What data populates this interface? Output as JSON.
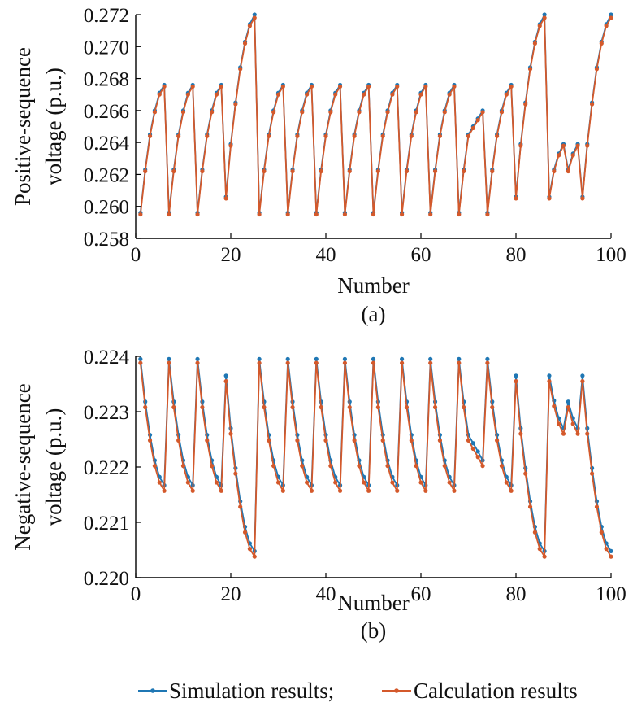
{
  "chart_data": [
    {
      "type": "line",
      "caption": "(a)",
      "xlabel": "Number",
      "ylabel": "Positive-sequence voltage (p.u.)",
      "xlim": [
        0,
        100
      ],
      "ylim": [
        0.258,
        0.272
      ],
      "xticks": [
        "0",
        "20",
        "40",
        "60",
        "80",
        "100"
      ],
      "yticks": [
        "0.258",
        "0.260",
        "0.262",
        "0.264",
        "0.266",
        "0.268",
        "0.270",
        "0.272"
      ],
      "grid": false,
      "x": [
        1,
        2,
        3,
        4,
        5,
        6,
        7,
        8,
        9,
        10,
        11,
        12,
        13,
        14,
        15,
        16,
        17,
        18,
        19,
        20,
        21,
        22,
        23,
        24,
        25,
        26,
        27,
        28,
        29,
        30,
        31,
        32,
        33,
        34,
        35,
        36,
        37,
        38,
        39,
        40,
        41,
        42,
        43,
        44,
        45,
        46,
        47,
        48,
        49,
        50,
        51,
        52,
        53,
        54,
        55,
        56,
        57,
        58,
        59,
        60,
        61,
        62,
        63,
        64,
        65,
        66,
        67,
        68,
        69,
        70,
        71,
        72,
        73,
        74,
        75,
        76,
        77,
        78,
        79,
        80,
        81,
        82,
        83,
        84,
        85,
        86,
        87,
        88,
        89,
        90,
        91,
        92,
        93,
        94,
        95,
        96,
        97,
        98,
        99,
        100
      ],
      "series": [
        {
          "name": "Simulation results",
          "color": "#1f77b4",
          "values": [
            0.2596,
            0.2623,
            0.2645,
            0.266,
            0.2671,
            0.2676,
            0.2596,
            0.2623,
            0.2645,
            0.266,
            0.2671,
            0.2676,
            0.2596,
            0.2623,
            0.2645,
            0.266,
            0.2671,
            0.2676,
            0.2606,
            0.2639,
            0.2665,
            0.2687,
            0.2703,
            0.2714,
            0.272,
            0.2596,
            0.2623,
            0.2645,
            0.266,
            0.2671,
            0.2676,
            0.2596,
            0.2623,
            0.2645,
            0.266,
            0.2671,
            0.2676,
            0.2596,
            0.2623,
            0.2645,
            0.266,
            0.2671,
            0.2676,
            0.2596,
            0.2623,
            0.2645,
            0.266,
            0.2671,
            0.2676,
            0.2596,
            0.2623,
            0.2645,
            0.266,
            0.2671,
            0.2676,
            0.2596,
            0.2623,
            0.2645,
            0.266,
            0.2671,
            0.2676,
            0.2596,
            0.2623,
            0.2645,
            0.266,
            0.2671,
            0.2676,
            0.2596,
            0.2623,
            0.2645,
            0.265,
            0.2655,
            0.266,
            0.2596,
            0.2623,
            0.2645,
            0.266,
            0.2671,
            0.2676,
            0.2606,
            0.2639,
            0.2665,
            0.2687,
            0.2703,
            0.2714,
            0.272,
            0.2606,
            0.2623,
            0.2633,
            0.2639,
            0.2623,
            0.2633,
            0.2639,
            0.2606,
            0.2639,
            0.2665,
            0.2687,
            0.2703,
            0.2714,
            0.272
          ]
        },
        {
          "name": "Calculation results",
          "color": "#d4592b",
          "values": [
            0.2595,
            0.2622,
            0.2644,
            0.2659,
            0.267,
            0.2675,
            0.2595,
            0.2622,
            0.2644,
            0.2659,
            0.267,
            0.2675,
            0.2595,
            0.2622,
            0.2644,
            0.2659,
            0.267,
            0.2675,
            0.2605,
            0.2638,
            0.2664,
            0.2686,
            0.2702,
            0.2713,
            0.2718,
            0.2595,
            0.2622,
            0.2644,
            0.2659,
            0.267,
            0.2675,
            0.2595,
            0.2622,
            0.2644,
            0.2659,
            0.267,
            0.2675,
            0.2595,
            0.2622,
            0.2644,
            0.2659,
            0.267,
            0.2675,
            0.2595,
            0.2622,
            0.2644,
            0.2659,
            0.267,
            0.2675,
            0.2595,
            0.2622,
            0.2644,
            0.2659,
            0.267,
            0.2675,
            0.2595,
            0.2622,
            0.2644,
            0.2659,
            0.267,
            0.2675,
            0.2595,
            0.2622,
            0.2644,
            0.2659,
            0.267,
            0.2675,
            0.2595,
            0.2622,
            0.2644,
            0.2649,
            0.2654,
            0.2659,
            0.2595,
            0.2622,
            0.2644,
            0.2659,
            0.267,
            0.2675,
            0.2605,
            0.2638,
            0.2664,
            0.2686,
            0.2702,
            0.2713,
            0.2718,
            0.2605,
            0.2622,
            0.2632,
            0.2638,
            0.2622,
            0.2632,
            0.2638,
            0.2605,
            0.2638,
            0.2664,
            0.2686,
            0.2702,
            0.2713,
            0.2718
          ]
        }
      ]
    },
    {
      "type": "line",
      "caption": "(b)",
      "xlabel": "Number",
      "ylabel": "Negative-sequence voltage (p.u.)",
      "xlim": [
        0,
        100
      ],
      "ylim": [
        0.22,
        0.224
      ],
      "xticks": [
        "0",
        "20",
        "40",
        "60",
        "80",
        "100"
      ],
      "yticks": [
        "0.220",
        "0.221",
        "0.222",
        "0.223",
        "0.224"
      ],
      "grid": false,
      "x": [
        1,
        2,
        3,
        4,
        5,
        6,
        7,
        8,
        9,
        10,
        11,
        12,
        13,
        14,
        15,
        16,
        17,
        18,
        19,
        20,
        21,
        22,
        23,
        24,
        25,
        26,
        27,
        28,
        29,
        30,
        31,
        32,
        33,
        34,
        35,
        36,
        37,
        38,
        39,
        40,
        41,
        42,
        43,
        44,
        45,
        46,
        47,
        48,
        49,
        50,
        51,
        52,
        53,
        54,
        55,
        56,
        57,
        58,
        59,
        60,
        61,
        62,
        63,
        64,
        65,
        66,
        67,
        68,
        69,
        70,
        71,
        72,
        73,
        74,
        75,
        76,
        77,
        78,
        79,
        80,
        81,
        82,
        83,
        84,
        85,
        86,
        87,
        88,
        89,
        90,
        91,
        92,
        93,
        94,
        95,
        96,
        97,
        98,
        99,
        100
      ],
      "series": [
        {
          "name": "Simulation results",
          "color": "#1f77b4",
          "values": [
            0.22395,
            0.22318,
            0.22258,
            0.22212,
            0.22182,
            0.22167,
            0.22395,
            0.22318,
            0.22258,
            0.22212,
            0.22182,
            0.22167,
            0.22395,
            0.22318,
            0.22258,
            0.22212,
            0.22182,
            0.22167,
            0.22365,
            0.2227,
            0.22198,
            0.22138,
            0.22092,
            0.22062,
            0.22048,
            0.22395,
            0.22318,
            0.22258,
            0.22212,
            0.22182,
            0.22167,
            0.22395,
            0.22318,
            0.22258,
            0.22212,
            0.22182,
            0.22167,
            0.22395,
            0.22318,
            0.22258,
            0.22212,
            0.22182,
            0.22167,
            0.22395,
            0.22318,
            0.22258,
            0.22212,
            0.22182,
            0.22167,
            0.22395,
            0.22318,
            0.22258,
            0.22212,
            0.22182,
            0.22167,
            0.22395,
            0.22318,
            0.22258,
            0.22212,
            0.22182,
            0.22167,
            0.22395,
            0.22318,
            0.22258,
            0.22212,
            0.22182,
            0.22167,
            0.22395,
            0.22318,
            0.22258,
            0.22243,
            0.22228,
            0.22212,
            0.22395,
            0.22318,
            0.22258,
            0.22212,
            0.22182,
            0.22167,
            0.22365,
            0.2227,
            0.22198,
            0.22138,
            0.22092,
            0.22062,
            0.22048,
            0.22365,
            0.2232,
            0.22288,
            0.2227,
            0.22318,
            0.22288,
            0.2227,
            0.22365,
            0.2227,
            0.22198,
            0.22138,
            0.22092,
            0.22062,
            0.22048
          ]
        },
        {
          "name": "Calculation results",
          "color": "#d4592b",
          "values": [
            0.22388,
            0.22308,
            0.22248,
            0.22202,
            0.22172,
            0.22157,
            0.22388,
            0.22308,
            0.22248,
            0.22202,
            0.22172,
            0.22157,
            0.22388,
            0.22308,
            0.22248,
            0.22202,
            0.22172,
            0.22157,
            0.22355,
            0.2226,
            0.22188,
            0.22128,
            0.22082,
            0.22052,
            0.22038,
            0.22388,
            0.22308,
            0.22248,
            0.22202,
            0.22172,
            0.22157,
            0.22388,
            0.22308,
            0.22248,
            0.22202,
            0.22172,
            0.22157,
            0.22388,
            0.22308,
            0.22248,
            0.22202,
            0.22172,
            0.22157,
            0.22388,
            0.22308,
            0.22248,
            0.22202,
            0.22172,
            0.22157,
            0.22388,
            0.22308,
            0.22248,
            0.22202,
            0.22172,
            0.22157,
            0.22388,
            0.22308,
            0.22248,
            0.22202,
            0.22172,
            0.22157,
            0.22388,
            0.22308,
            0.22248,
            0.22202,
            0.22172,
            0.22157,
            0.22388,
            0.22308,
            0.22248,
            0.22233,
            0.22218,
            0.22202,
            0.22388,
            0.22308,
            0.22248,
            0.22202,
            0.22172,
            0.22157,
            0.22355,
            0.2226,
            0.22188,
            0.22128,
            0.22082,
            0.22052,
            0.22038,
            0.22355,
            0.2231,
            0.22278,
            0.2226,
            0.22308,
            0.22278,
            0.2226,
            0.22355,
            0.2226,
            0.22188,
            0.22128,
            0.22082,
            0.22052,
            0.22038
          ]
        }
      ]
    }
  ],
  "legend": {
    "entries": [
      "Simulation results;",
      "Calculation results"
    ],
    "placement": "bottom-right"
  }
}
